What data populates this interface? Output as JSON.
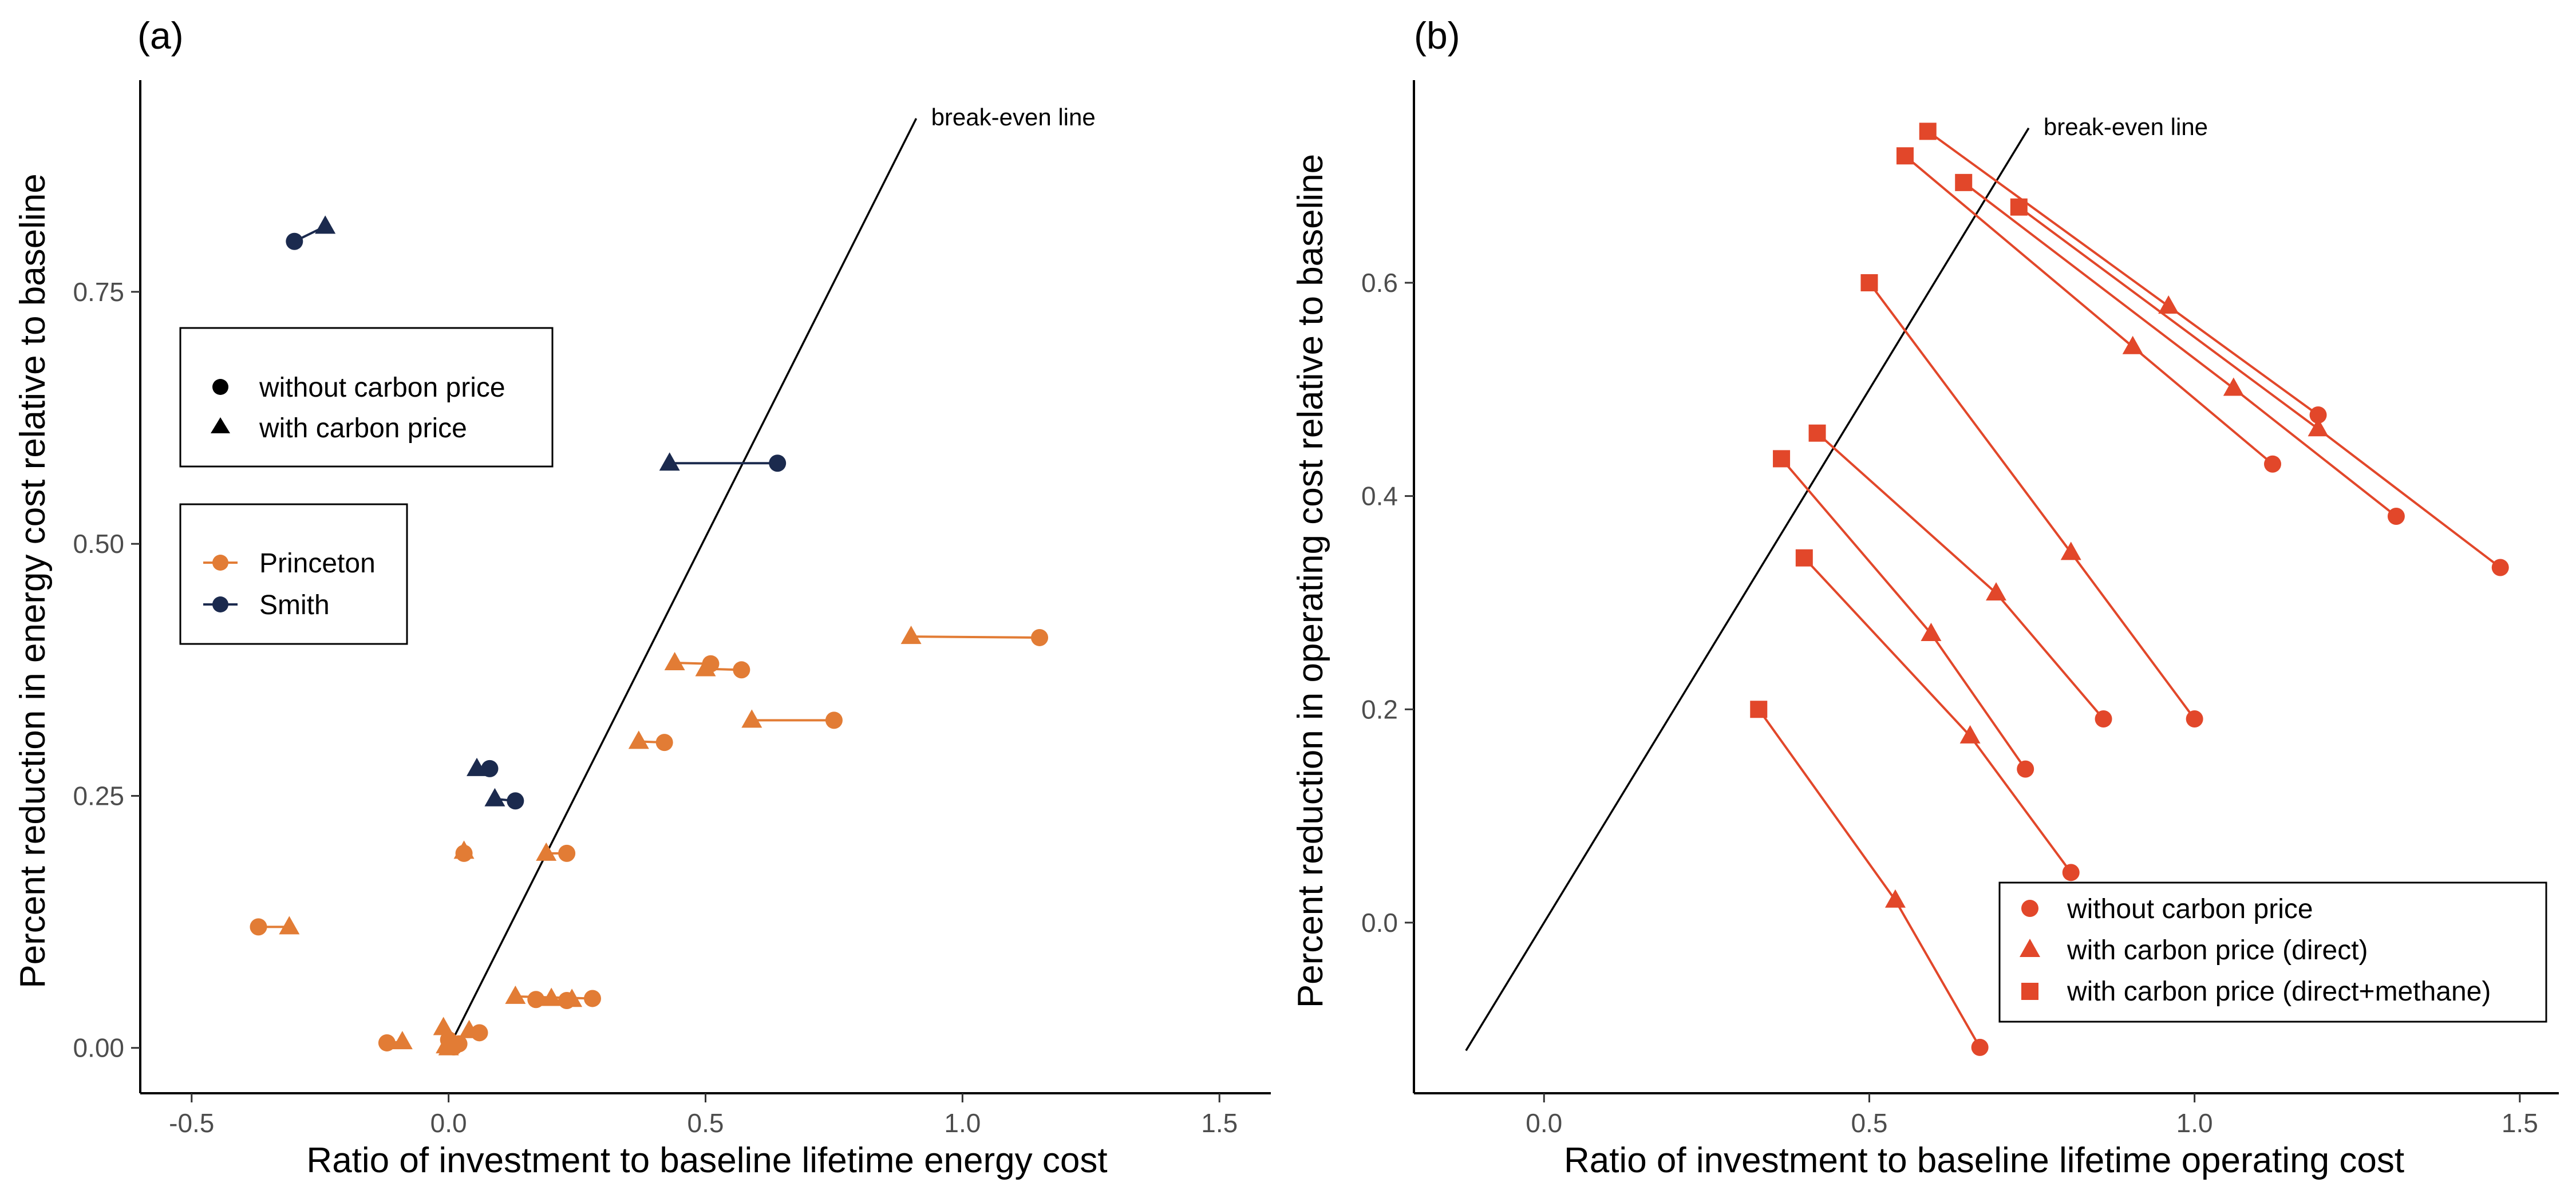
{
  "chart_data": [
    {
      "type": "scatter",
      "panel_label": "(a)",
      "xlabel": "Ratio of investment to baseline lifetime energy cost",
      "ylabel": "Percent reduction in energy cost relative to baseline",
      "xlim": [
        -0.6,
        1.6
      ],
      "ylim": [
        -0.045,
        0.96
      ],
      "xticks": [
        -0.5,
        0.0,
        0.5,
        1.0,
        1.5
      ],
      "xtick_labels": [
        "-0.5",
        "0.0",
        "0.5",
        "1.0",
        "1.5"
      ],
      "yticks": [
        0.0,
        0.25,
        0.5,
        0.75
      ],
      "ytick_labels": [
        "0.00",
        "0.25",
        "0.50",
        "0.75"
      ],
      "grid": false,
      "break_even_line": {
        "label": "break-even line",
        "from": [
          0.0,
          0.0
        ],
        "to": [
          0.91,
          0.922
        ]
      },
      "shape_legend": {
        "position": "upper-left",
        "entries": [
          {
            "label": "without carbon price",
            "shape": "circle"
          },
          {
            "label": "with carbon price",
            "shape": "triangle"
          }
        ]
      },
      "color_legend": {
        "position": "middle-left",
        "entries": [
          {
            "label": "Princeton",
            "color": "#E27C35"
          },
          {
            "label": "Smith",
            "color": "#1B2A4E"
          }
        ]
      },
      "series": [
        {
          "name": "Smith",
          "color": "#1B2A4E",
          "pairs": [
            {
              "without": [
                -0.3,
                0.8
              ],
              "with": [
                -0.24,
                0.815
              ]
            },
            {
              "without": [
                0.64,
                0.58
              ],
              "with": [
                0.43,
                0.58
              ]
            },
            {
              "without": [
                0.08,
                0.277
              ],
              "with": [
                0.055,
                0.277
              ]
            },
            {
              "without": [
                0.13,
                0.245
              ],
              "with": [
                0.09,
                0.247
              ]
            }
          ]
        },
        {
          "name": "Princeton",
          "color": "#E27C35",
          "pairs": [
            {
              "without": [
                1.15,
                0.407
              ],
              "with": [
                0.9,
                0.408
              ]
            },
            {
              "without": [
                0.75,
                0.325
              ],
              "with": [
                0.59,
                0.325
              ]
            },
            {
              "without": [
                0.57,
                0.375
              ],
              "with": [
                0.5,
                0.376
              ]
            },
            {
              "without": [
                0.51,
                0.381
              ],
              "with": [
                0.44,
                0.382
              ]
            },
            {
              "without": [
                0.42,
                0.303
              ],
              "with": [
                0.37,
                0.304
              ]
            },
            {
              "without": [
                0.23,
                0.193
              ],
              "with": [
                0.19,
                0.193
              ]
            },
            {
              "without": [
                0.03,
                0.193
              ],
              "with": [
                0.03,
                0.195
              ]
            },
            {
              "without": [
                -0.37,
                0.12
              ],
              "with": [
                -0.31,
                0.12
              ]
            },
            {
              "without": [
                -0.12,
                0.005
              ],
              "with": [
                -0.09,
                0.006
              ]
            },
            {
              "without": [
                0.28,
                0.049
              ],
              "with": [
                0.13,
                0.051
              ]
            },
            {
              "without": [
                0.17,
                0.048
              ],
              "with": [
                0.2,
                0.049
              ]
            },
            {
              "without": [
                0.23,
                0.047
              ],
              "with": [
                0.24,
                0.048
              ]
            },
            {
              "without": [
                0.06,
                0.015
              ],
              "with": [
                0.04,
                0.017
              ]
            },
            {
              "without": [
                0.0,
                0.008
              ],
              "with": [
                -0.01,
                0.02
              ]
            },
            {
              "without": [
                0.02,
                0.004
              ],
              "with": [
                -0.005,
                0.002
              ]
            },
            {
              "without": [
                0.01,
                0.001
              ],
              "with": [
                0.0,
                0.0
              ]
            }
          ]
        }
      ]
    },
    {
      "type": "scatter",
      "panel_label": "(b)",
      "xlabel": "Ratio of investment to baseline lifetime operating cost",
      "ylabel": "Percent reduction in operating cost relative to baseline",
      "xlim": [
        -0.2,
        1.56
      ],
      "ylim": [
        -0.16,
        0.79
      ],
      "xticks": [
        0.0,
        0.5,
        1.0,
        1.5
      ],
      "xtick_labels": [
        "0.0",
        "0.5",
        "1.0",
        "1.5"
      ],
      "yticks": [
        0.0,
        0.2,
        0.4,
        0.6
      ],
      "ytick_labels": [
        "0.0",
        "0.2",
        "0.4",
        "0.6"
      ],
      "grid": false,
      "break_even_line": {
        "label": "break-even line",
        "from": [
          -0.12,
          -0.12
        ],
        "to": [
          0.745,
          0.745
        ]
      },
      "legend": {
        "position": "lower-right",
        "entries": [
          {
            "label": "without carbon price",
            "shape": "circle"
          },
          {
            "label": "with carbon price (direct)",
            "shape": "triangle"
          },
          {
            "label": "with carbon price (direct+methane)",
            "shape": "square"
          }
        ]
      },
      "series": [
        {
          "name": "",
          "color": "#E2472A",
          "triples": [
            {
              "without": [
                1.19,
                0.476
              ],
              "direct": [
                0.96,
                0.578
              ],
              "methane": [
                0.59,
                0.742
              ]
            },
            {
              "without": [
                1.47,
                0.333
              ],
              "direct": [
                1.19,
                0.463
              ],
              "methane": [
                0.73,
                0.671
              ]
            },
            {
              "without": [
                1.31,
                0.381
              ],
              "direct": [
                1.06,
                0.501
              ],
              "methane": [
                0.645,
                0.694
              ]
            },
            {
              "without": [
                1.12,
                0.43
              ],
              "direct": [
                0.905,
                0.54
              ],
              "methane": [
                0.555,
                0.719
              ]
            },
            {
              "without": [
                1.0,
                0.191
              ],
              "direct": [
                0.81,
                0.347
              ],
              "methane": [
                0.5,
                0.6
              ]
            },
            {
              "without": [
                0.86,
                0.191
              ],
              "direct": [
                0.695,
                0.309
              ],
              "methane": [
                0.42,
                0.459
              ]
            },
            {
              "without": [
                0.74,
                0.144
              ],
              "direct": [
                0.595,
                0.271
              ],
              "methane": [
                0.365,
                0.435
              ]
            },
            {
              "without": [
                0.81,
                0.047
              ],
              "direct": [
                0.655,
                0.175
              ],
              "methane": [
                0.4,
                0.342
              ]
            },
            {
              "without": [
                0.67,
                -0.117
              ],
              "direct": [
                0.54,
                0.021
              ],
              "methane": [
                0.33,
                0.2
              ]
            }
          ]
        }
      ]
    }
  ]
}
